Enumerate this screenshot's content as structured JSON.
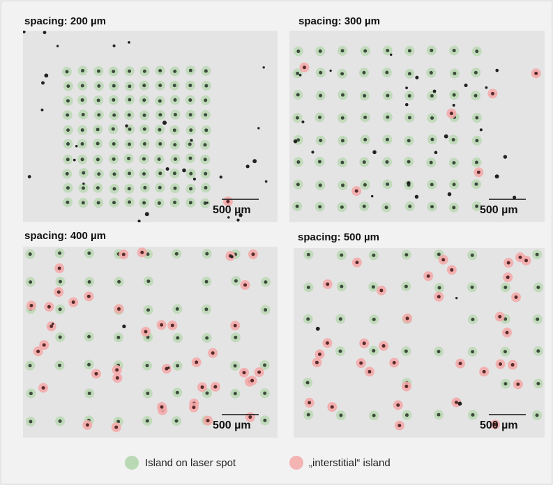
{
  "panels": [
    {
      "title": "spacing: 200 µm",
      "scale_bar": "500 µm"
    },
    {
      "title": "spacing: 300 µm",
      "scale_bar": "500 µm"
    },
    {
      "title": "spacing: 400 µm",
      "scale_bar": "500 µm"
    },
    {
      "title": "spacing: 500 µm",
      "scale_bar": "500 µm"
    }
  ],
  "legend": [
    {
      "label": "Island on laser spot"
    },
    {
      "label": "„interstitial“ island"
    }
  ]
}
